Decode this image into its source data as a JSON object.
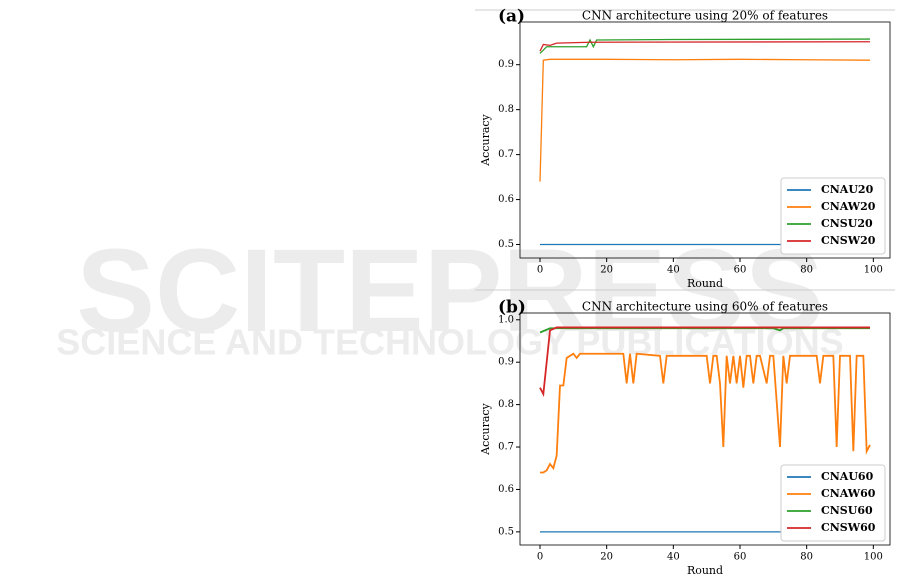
{
  "watermark": {
    "line1": "SCITEPRESS",
    "line2": "SCIENCE AND TECHNOLOGY PUBLICATIONS"
  },
  "chart_data": [
    {
      "type": "line",
      "panel": "(a)",
      "title": "CNN architecture using 20% of features",
      "xlabel": "Round",
      "ylabel": "Accuracy",
      "xlim": [
        -6,
        105
      ],
      "ylim": [
        0.47,
        0.995
      ],
      "xticks": [
        0,
        20,
        40,
        60,
        80,
        100
      ],
      "yticks": [
        0.5,
        0.6,
        0.7,
        0.8,
        0.9
      ],
      "legend": "lower right",
      "grid": false,
      "series": [
        {
          "name": "CNAU20",
          "color": "#1f77b4",
          "x": [
            0,
            99
          ],
          "values": [
            0.5,
            0.5
          ]
        },
        {
          "name": "CNAW20",
          "color": "#ff7f0e",
          "x": [
            0,
            1,
            3,
            20,
            40,
            60,
            80,
            99
          ],
          "values": [
            0.64,
            0.91,
            0.912,
            0.912,
            0.911,
            0.912,
            0.911,
            0.91
          ]
        },
        {
          "name": "CNSU20",
          "color": "#2ca02c",
          "x": [
            0,
            2,
            14,
            15,
            16,
            17,
            40,
            99
          ],
          "values": [
            0.925,
            0.94,
            0.94,
            0.955,
            0.94,
            0.955,
            0.956,
            0.957
          ]
        },
        {
          "name": "CNSW20",
          "color": "#d62728",
          "x": [
            0,
            1,
            3,
            5,
            15,
            99
          ],
          "values": [
            0.93,
            0.945,
            0.943,
            0.948,
            0.95,
            0.951
          ]
        }
      ]
    },
    {
      "type": "line",
      "panel": "(b)",
      "title": "CNN architecture using 60% of features",
      "xlabel": "Round",
      "ylabel": "Accuracy",
      "xlim": [
        -6,
        105
      ],
      "ylim": [
        0.469,
        1.016
      ],
      "xticks": [
        0,
        20,
        40,
        60,
        80,
        100
      ],
      "yticks": [
        0.5,
        0.6,
        0.7,
        0.8,
        0.9,
        {
          "value": 1.0,
          "label": "1.0"
        }
      ],
      "legend": "lower right",
      "grid": false,
      "series": [
        {
          "name": "CNAU60",
          "color": "#1f77b4",
          "x": [
            0,
            99
          ],
          "values": [
            0.5,
            0.5
          ]
        },
        {
          "name": "CNAW60",
          "color": "#ff7f0e",
          "x": [
            0,
            1,
            2,
            3,
            4,
            5,
            6,
            7,
            8,
            10,
            11,
            12,
            25,
            26,
            27,
            28,
            29,
            36,
            37,
            38,
            50,
            51,
            52,
            53,
            54,
            55,
            56,
            57,
            58,
            59,
            60,
            61,
            62,
            63,
            64,
            65,
            66,
            68,
            69,
            70,
            72,
            73,
            74,
            75,
            83,
            84,
            85,
            88,
            89,
            90,
            93,
            94,
            95,
            97,
            98,
            99
          ],
          "values": [
            0.64,
            0.64,
            0.645,
            0.66,
            0.65,
            0.68,
            0.845,
            0.845,
            0.91,
            0.92,
            0.91,
            0.92,
            0.92,
            0.85,
            0.92,
            0.85,
            0.92,
            0.915,
            0.85,
            0.915,
            0.915,
            0.85,
            0.915,
            0.915,
            0.85,
            0.7,
            0.915,
            0.85,
            0.915,
            0.85,
            0.915,
            0.84,
            0.915,
            0.915,
            0.85,
            0.915,
            0.915,
            0.85,
            0.915,
            0.915,
            0.7,
            0.915,
            0.85,
            0.915,
            0.915,
            0.85,
            0.915,
            0.915,
            0.7,
            0.915,
            0.915,
            0.69,
            0.915,
            0.915,
            0.69,
            0.705
          ]
        },
        {
          "name": "CNSU60",
          "color": "#2ca02c",
          "x": [
            0,
            3,
            70,
            72,
            73,
            99
          ],
          "values": [
            0.97,
            0.98,
            0.98,
            0.975,
            0.98,
            0.98
          ]
        },
        {
          "name": "CNSW60",
          "color": "#d62728",
          "x": [
            0,
            1,
            3,
            5,
            99
          ],
          "values": [
            0.84,
            0.825,
            0.975,
            0.982,
            0.982
          ]
        }
      ]
    }
  ]
}
